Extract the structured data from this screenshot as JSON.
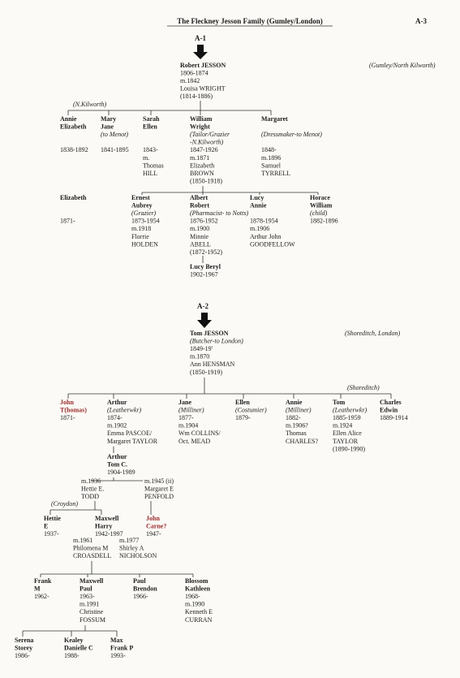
{
  "header": {
    "title": "The Fleckney Jesson Family (Gumley/London)",
    "page_ref": "A-3"
  },
  "sections": [
    {
      "label": "A-1",
      "notes": [
        "(Gumley/North Kilworth)",
        "(N.Kilworth)"
      ],
      "people": [
        {
          "lines": [
            "Robert JESSON",
            "1806-1874",
            "m.1842",
            "Louisa WRIGHT",
            "(1814-1886)"
          ]
        },
        {
          "lines": [
            "Annie",
            "Elizabeth",
            "1838-1892"
          ]
        },
        {
          "lines": [
            "Mary",
            "Jane",
            "(to Menot)",
            "1841-1895"
          ]
        },
        {
          "lines": [
            "Sarah",
            "Ellen",
            "1843-",
            "m.",
            "Thomas",
            "HILL"
          ]
        },
        {
          "lines": [
            "William",
            "Wright",
            "(Tailor/Grazier",
            "-N.Kilworth)",
            "1847-1926",
            "m.1871",
            "Elizabeth",
            "BROWN",
            "(1850-1918)"
          ]
        },
        {
          "lines": [
            "Margaret",
            "(Dressmaker-to Menot)",
            "1848-",
            "m.1896",
            "Samuel",
            "TYRRELL"
          ]
        },
        {
          "lines": [
            "Elizabeth",
            "1871-"
          ]
        },
        {
          "lines": [
            "Ernest",
            "Aubrey",
            "(Grazier)",
            "1873-1954",
            "m.1918",
            "Florrie",
            "HOLDEN"
          ]
        },
        {
          "lines": [
            "Albert",
            "Robert",
            "(Pharmacist- to Notts)",
            "1876-1952",
            "m.1900",
            "Minnie",
            "ABELL",
            "(1872-1952)"
          ]
        },
        {
          "lines": [
            "Lucy",
            "Annie",
            "1878-1954",
            "m.1906",
            "Arthur John",
            "GOODFELLOW"
          ]
        },
        {
          "lines": [
            "Horace",
            "William",
            "(child)",
            "1882-1896"
          ]
        },
        {
          "lines": [
            "Lucy Beryl",
            "1902-1967"
          ]
        }
      ]
    },
    {
      "label": "A-2",
      "notes": [
        "(Shoreditch, London)",
        "(Shoreditch)",
        "(Croydon)"
      ],
      "people": [
        {
          "lines": [
            "Tom JESSON",
            "(Butcher-to London)",
            "1849-19'",
            "m.1870",
            "Ann HENSMAN",
            "(1850-1919)"
          ]
        },
        {
          "lines": [
            "John",
            "T(homas)",
            "1871-"
          ]
        },
        {
          "lines": [
            "Arthur",
            "(Leatherwkr)",
            "1874-",
            "m.1902",
            "Emma PASCOE/",
            "Margaret TAYLOR"
          ]
        },
        {
          "lines": [
            "Jane",
            "(Milliner)",
            "1877-",
            "m.1904",
            "Wm COLLINS/",
            "Oct. MEAD"
          ]
        },
        {
          "lines": [
            "Ellen",
            "(Costumier)",
            "1879-"
          ]
        },
        {
          "lines": [
            "Annie",
            "(Milliner)",
            "1882-",
            "m.1906?",
            "Thomas",
            "CHARLES?"
          ]
        },
        {
          "lines": [
            "Tom",
            "(Leatherwkr)",
            "1885-1959",
            "m.1924",
            "Ellen Alice",
            "TAYLOR",
            "(1890-1990)"
          ]
        },
        {
          "lines": [
            "Charles",
            "Edwin",
            "1889-1914"
          ]
        },
        {
          "lines": [
            "Arthur",
            "Tom C.",
            "1904-1989"
          ]
        },
        {
          "lines": [
            "m.1936",
            "Hettie E.",
            "TODD"
          ]
        },
        {
          "lines": [
            "m.1945 (ii)",
            "Margaret E",
            "PENFOLD"
          ]
        },
        {
          "lines": [
            "Hettie",
            "E",
            "1937-"
          ]
        },
        {
          "lines": [
            "Maxwell",
            "Harry",
            "1942-1997"
          ]
        },
        {
          "lines": [
            "John",
            "Carne?",
            "1947-"
          ]
        },
        {
          "lines": [
            "m.1961",
            "Philomena M",
            "CROASDELL"
          ]
        },
        {
          "lines": [
            "m.1977",
            "Shirley A",
            "NICHOLSON"
          ]
        },
        {
          "lines": [
            "Frank",
            "M",
            "1962-"
          ]
        },
        {
          "lines": [
            "Maxwell",
            "Paul",
            "1963-",
            "m.1991",
            "Christine",
            "FOSSUM"
          ]
        },
        {
          "lines": [
            "Paul",
            "Brendon",
            "1966-"
          ]
        },
        {
          "lines": [
            "Blossom",
            "Kathleen",
            "1968-",
            "m.1990",
            "Kenneth E",
            "CURRAN"
          ]
        },
        {
          "lines": [
            "Serena",
            "Storey",
            "1986-"
          ]
        },
        {
          "lines": [
            "Kealey",
            "Danielle C",
            "1988-"
          ]
        },
        {
          "lines": [
            "Max",
            "Frank P",
            "1993-"
          ]
        }
      ]
    }
  ]
}
